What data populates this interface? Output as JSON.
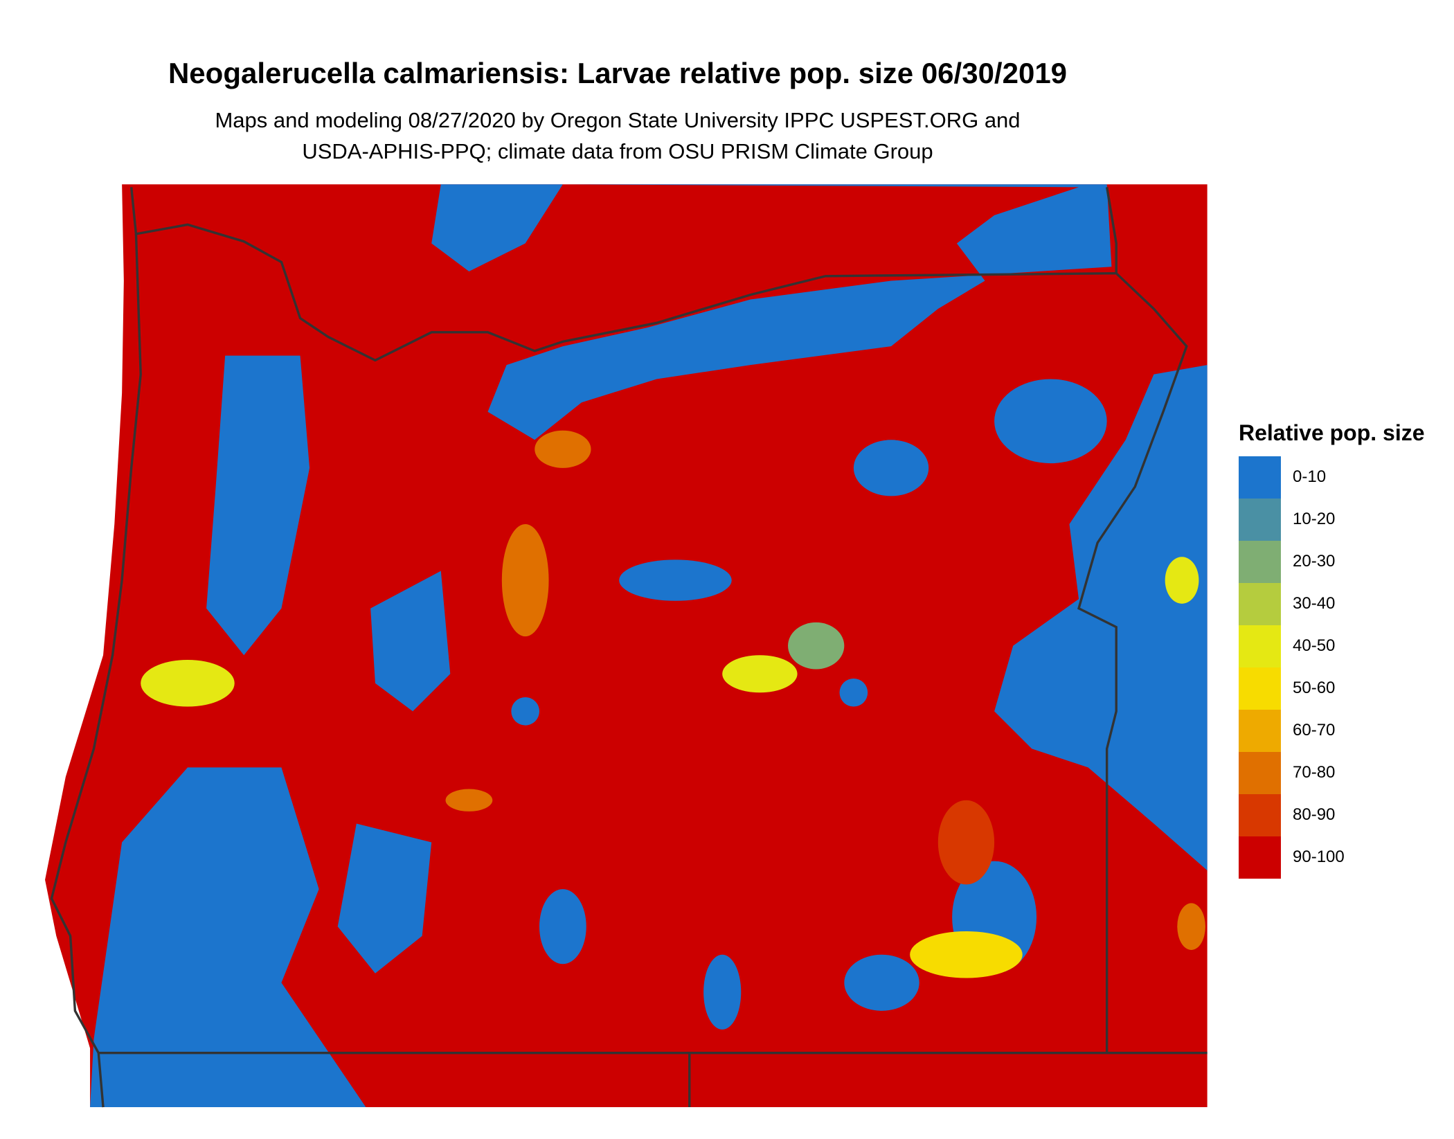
{
  "header": {
    "title": "Neogalerucella calmariensis: Larvae relative pop. size 06/30/2019",
    "subtitle_lines": [
      "Maps and modeling 08/27/2020 by Oregon State University IPPC USPEST.ORG and",
      "USDA-APHIS-PPQ; climate data from OSU PRISM Climate Group"
    ]
  },
  "legend": {
    "title": "Relative pop. size",
    "items": [
      {
        "label": "0-10",
        "color": "#1c75cd"
      },
      {
        "label": "10-20",
        "color": "#4a90a4"
      },
      {
        "label": "20-30",
        "color": "#7fae73"
      },
      {
        "label": "30-40",
        "color": "#b5cc3e"
      },
      {
        "label": "40-50",
        "color": "#e5e813"
      },
      {
        "label": "50-60",
        "color": "#f7dc00"
      },
      {
        "label": "60-70",
        "color": "#eeaa00"
      },
      {
        "label": "70-80",
        "color": "#e07000"
      },
      {
        "label": "80-90",
        "color": "#d83800"
      },
      {
        "label": "90-100",
        "color": "#cc0000"
      }
    ]
  }
}
